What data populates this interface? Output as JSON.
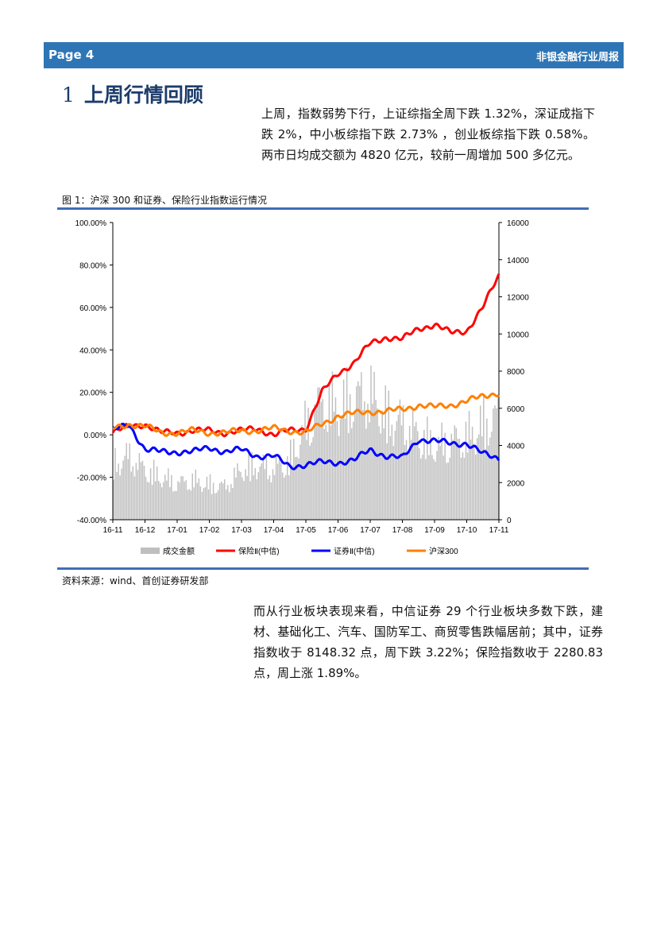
{
  "header": {
    "page_label": "Page 4",
    "report_title": "非银金融行业周报",
    "bar_color": "#2e75b5"
  },
  "section": {
    "number": "1",
    "title": "上周行情回顾"
  },
  "paragraphs": {
    "intro": "上周，指数弱势下行，上证综指全周下跌 1.32%，深证成指下跌 2%，中小板综指下跌 2.73% ，创业板综指下跌 0.58%。两市日均成交额为 4820 亿元，较前一周增加 500 多亿元。",
    "sectors": "而从行业板块表现来看，中信证券 29 个行业板块多数下跌，建材、基础化工、汽车、国防军工、商贸零售跌幅居前；其中，证券指数收于 8148.32 点，周下跌 3.22%；保险指数收于 2280.83 点，周上涨 1.89%。"
  },
  "figure": {
    "caption": "图 1：沪深 300 和证券、保险行业指数运行情况",
    "source": "资料来源：wind、首创证券研发部"
  },
  "chart_data": {
    "type": "line",
    "title": "",
    "x_tick_labels": [
      "16-11",
      "16-12",
      "17-01",
      "17-02",
      "17-03",
      "17-04",
      "17-05",
      "17-06",
      "17-07",
      "17-08",
      "17-09",
      "17-10",
      "17-11"
    ],
    "y_left": {
      "ticks": [
        "100.00%",
        "80.00%",
        "60.00%",
        "40.00%",
        "20.00%",
        "0.00%",
        "-20.00%",
        "-40.00%"
      ],
      "range": [
        -40,
        100
      ],
      "unit": "%"
    },
    "y_right": {
      "ticks": [
        "16000",
        "14000",
        "12000",
        "10000",
        "8000",
        "6000",
        "4000",
        "2000",
        "0"
      ],
      "range": [
        0,
        16000
      ]
    },
    "grid": false,
    "legend_position": "bottom",
    "x": [
      0,
      0.5,
      1,
      1.5,
      2,
      2.5,
      3,
      3.5,
      4,
      4.5,
      5,
      5.5,
      6,
      6.5,
      7,
      7.5,
      8,
      8.5,
      9,
      9.5,
      10,
      10.5,
      11,
      11.5,
      12
    ],
    "series": [
      {
        "name": "成交金额",
        "axis": "right",
        "kind": "bar",
        "color": "#bfbfbf",
        "values": [
          3600,
          4200,
          3300,
          2800,
          2400,
          2600,
          2300,
          2200,
          3300,
          3600,
          3300,
          3900,
          6200,
          7800,
          7400,
          8000,
          8300,
          6800,
          6400,
          5600,
          4800,
          5200,
          5400,
          6300,
          6800
        ]
      },
      {
        "name": "保险Ⅱ(中信)",
        "axis": "left",
        "kind": "line",
        "color": "#ff0000",
        "values": [
          1,
          4,
          5,
          1,
          1,
          2,
          2,
          1,
          2,
          3,
          0,
          2,
          3,
          20,
          29,
          34,
          43,
          46,
          45,
          50,
          52,
          48,
          49,
          60,
          75
        ]
      },
      {
        "name": "证券Ⅱ(中信)",
        "axis": "left",
        "kind": "line",
        "color": "#0000ff",
        "values": [
          2,
          5,
          -7,
          -8,
          -8,
          -8,
          -6,
          -8,
          -7,
          -10,
          -10,
          -15,
          -14,
          -13,
          -13,
          -12,
          -7,
          -10,
          -11,
          -2,
          -3,
          -4,
          -4,
          -9,
          -11
        ]
      },
      {
        "name": "沪深300",
        "axis": "left",
        "kind": "line",
        "color": "#ff8000",
        "values": [
          3,
          5,
          4,
          1,
          1,
          2,
          1,
          1,
          2,
          2,
          3,
          2,
          1,
          5,
          9,
          10,
          11,
          11,
          12,
          14,
          13,
          14,
          16,
          18,
          20
        ]
      }
    ]
  }
}
